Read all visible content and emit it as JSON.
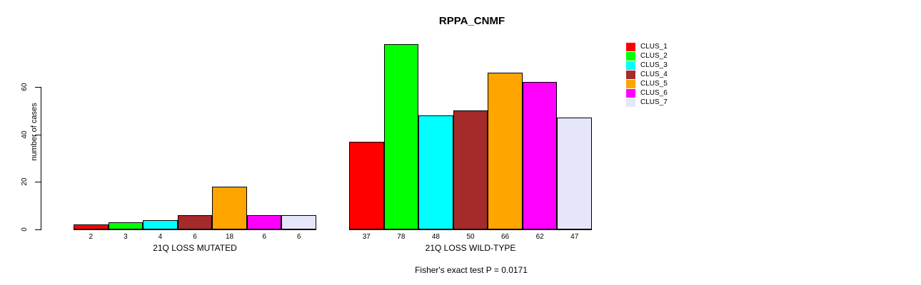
{
  "title": "RPPA_CNMF",
  "y_axis": {
    "label": "number of cases"
  },
  "footer": "Fisher's exact test P = 0.0171",
  "legend": {
    "items": [
      {
        "label": "CLUS_1",
        "color": "#FF0000"
      },
      {
        "label": "CLUS_2",
        "color": "#00FF00"
      },
      {
        "label": "CLUS_3",
        "color": "#00FFFF"
      },
      {
        "label": "CLUS_4",
        "color": "#A52A2A"
      },
      {
        "label": "CLUS_5",
        "color": "#FFA500"
      },
      {
        "label": "CLUS_6",
        "color": "#FF00FF"
      },
      {
        "label": "CLUS_7",
        "color": "#E6E6FA"
      }
    ]
  },
  "chart_data": {
    "type": "bar",
    "title": "RPPA_CNMF",
    "ylabel": "number of cases",
    "ylim": [
      0,
      78
    ],
    "yticks": [
      0,
      20,
      40,
      60
    ],
    "grid": false,
    "legend_position": "right",
    "series_names": [
      "CLUS_1",
      "CLUS_2",
      "CLUS_3",
      "CLUS_4",
      "CLUS_5",
      "CLUS_6",
      "CLUS_7"
    ],
    "series_colors": [
      "#FF0000",
      "#00FF00",
      "#00FFFF",
      "#A52A2A",
      "#FFA500",
      "#FF00FF",
      "#E6E6FA"
    ],
    "groups": [
      {
        "label": "21Q LOSS MUTATED",
        "values": [
          2,
          3,
          4,
          6,
          18,
          6,
          6
        ]
      },
      {
        "label": "21Q LOSS WILD-TYPE",
        "values": [
          37,
          78,
          48,
          50,
          66,
          62,
          47
        ]
      }
    ],
    "annotation": "Fisher's exact test P = 0.0171"
  }
}
